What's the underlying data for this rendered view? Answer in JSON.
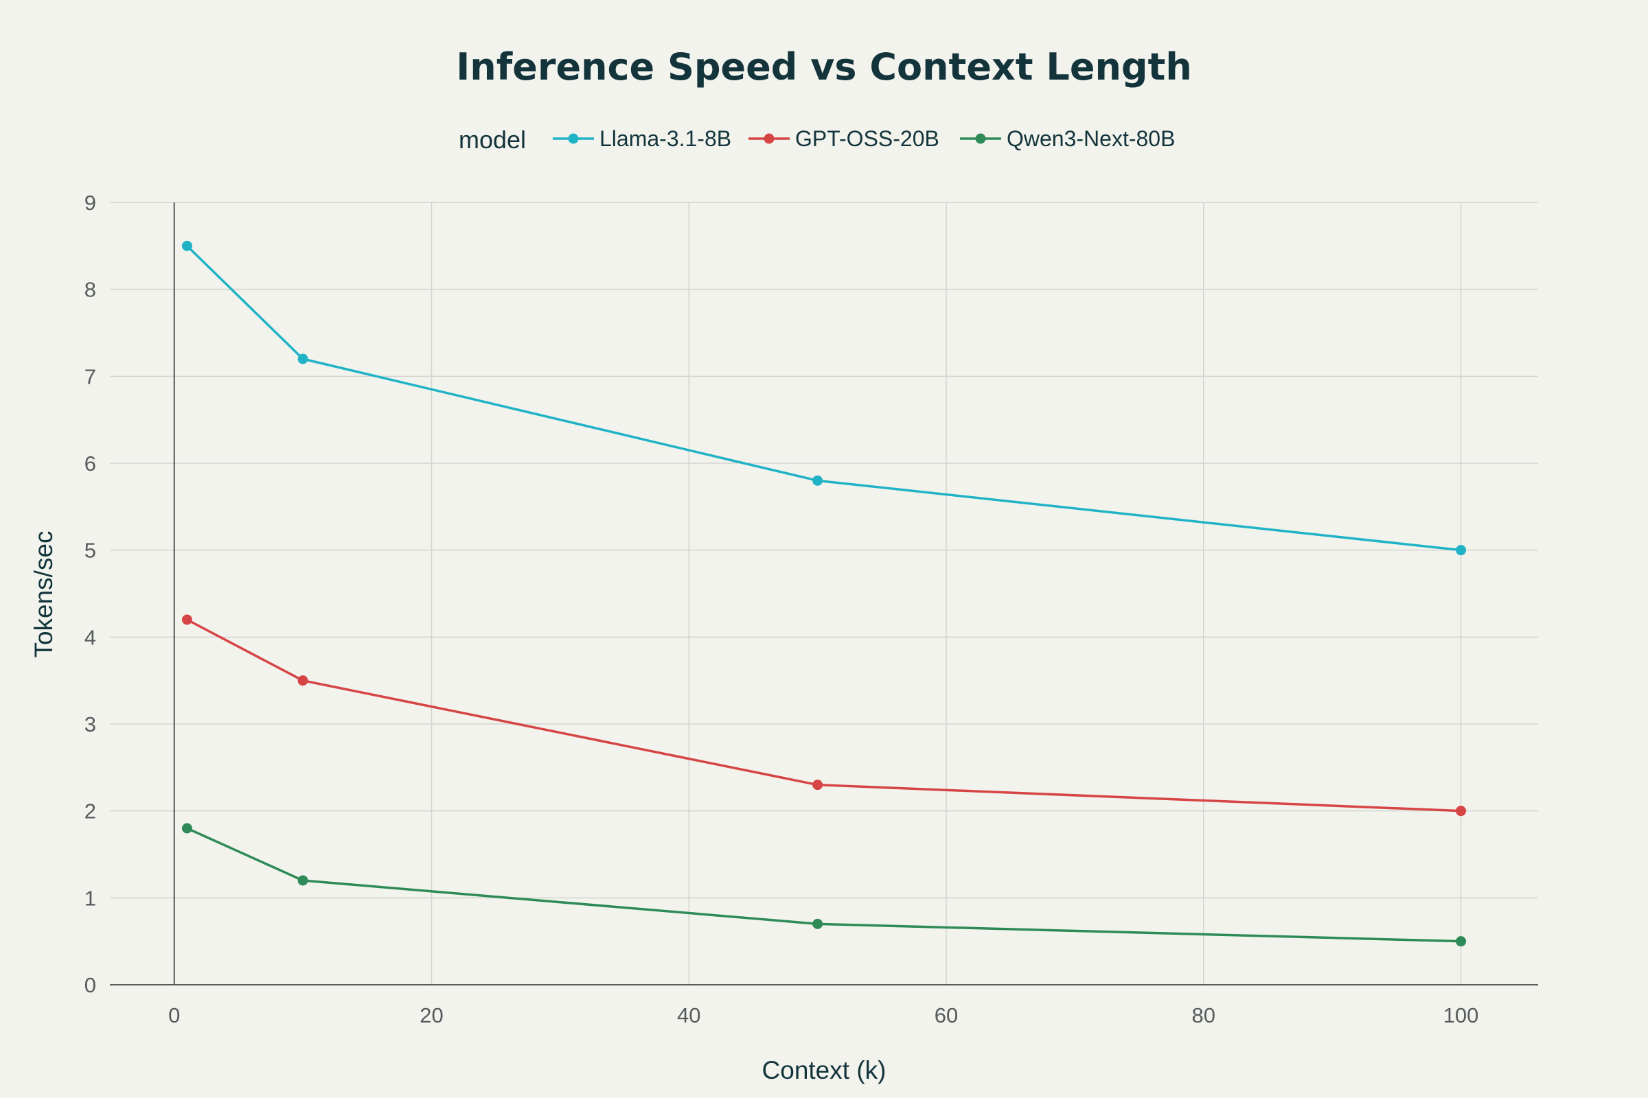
{
  "chart_data": {
    "type": "line",
    "title": "Inference Speed vs Context Length",
    "xlabel": "Context (k)",
    "ylabel": "Tokens/sec",
    "legend_title": "model",
    "legend_placement": "top-center",
    "grid": true,
    "xlim": [
      -5,
      106
    ],
    "ylim": [
      0,
      9
    ],
    "x_ticks": [
      0,
      20,
      40,
      60,
      80,
      100
    ],
    "y_ticks": [
      0,
      1,
      2,
      3,
      4,
      5,
      6,
      7,
      8,
      9
    ],
    "x": [
      1,
      10,
      50,
      100
    ],
    "series": [
      {
        "name": "Llama-3.1-8B",
        "color": "#20b3c6",
        "values": [
          8.5,
          7.2,
          5.8,
          5.0
        ]
      },
      {
        "name": "GPT-OSS-20B",
        "color": "#d64545",
        "values": [
          4.2,
          3.5,
          2.3,
          2.0
        ]
      },
      {
        "name": "Qwen3-Next-80B",
        "color": "#2e8b57",
        "values": [
          1.8,
          1.2,
          0.7,
          0.5
        ]
      }
    ]
  }
}
